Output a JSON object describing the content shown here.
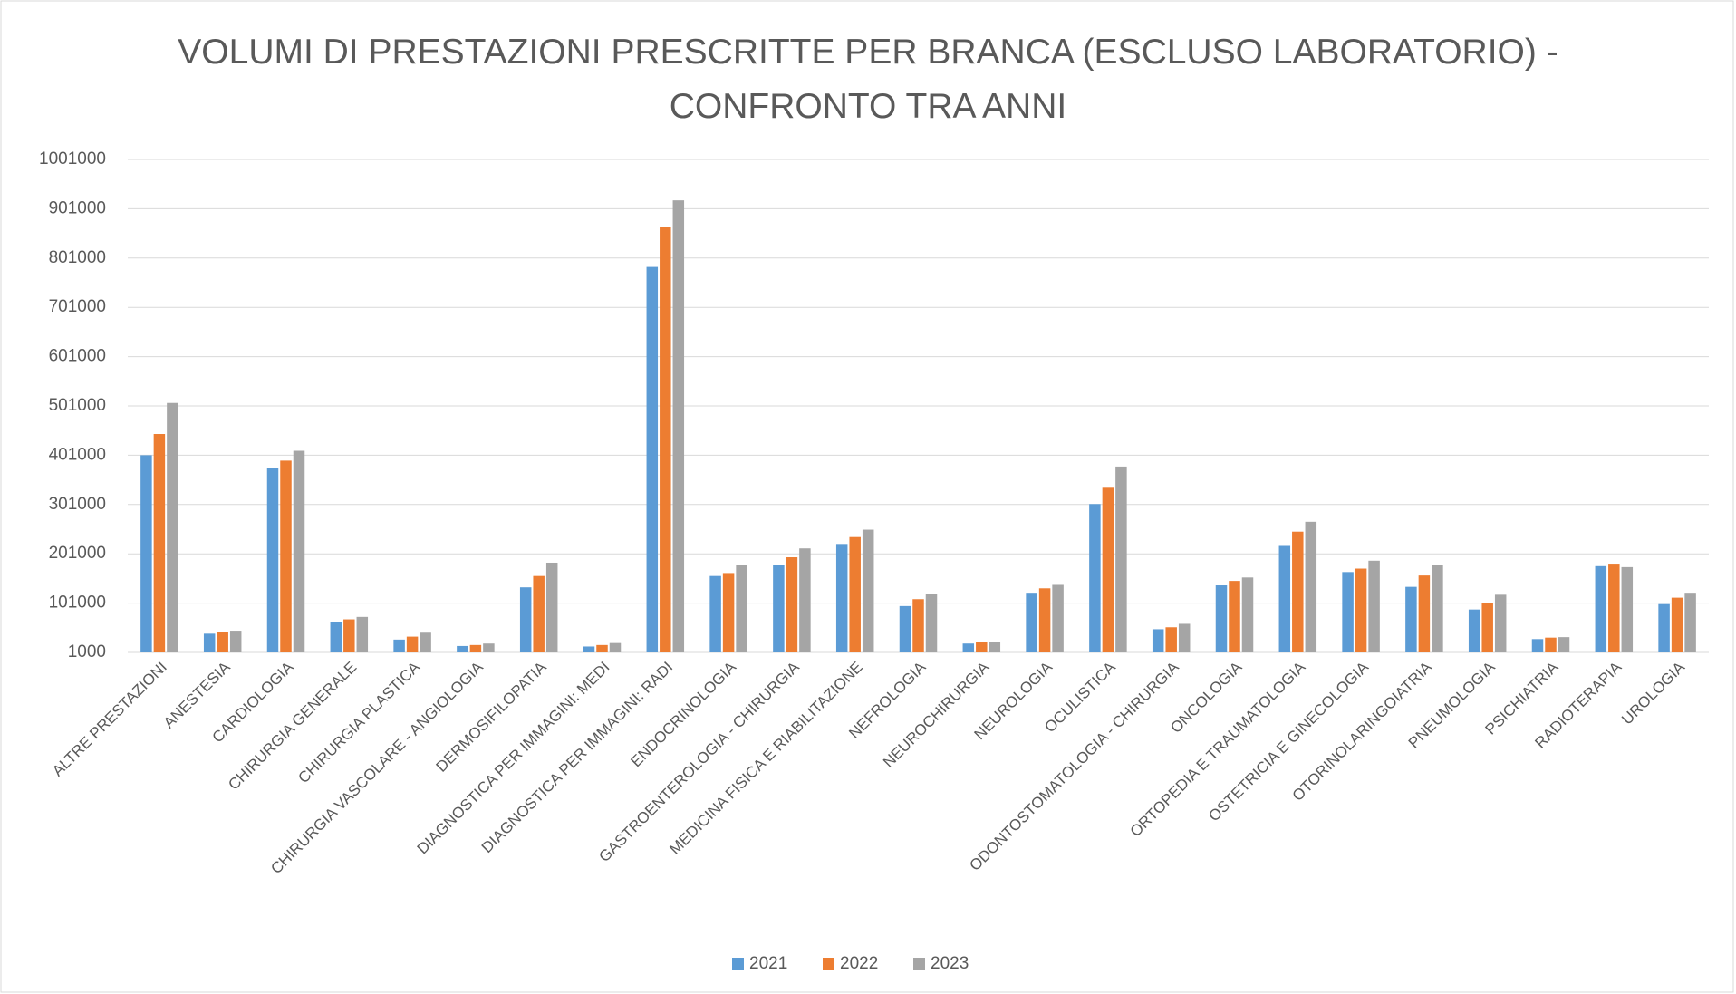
{
  "chart_data": {
    "type": "bar",
    "title": "VOLUMI DI PRESTAZIONI PRESCRITTE PER BRANCA (ESCLUSO LABORATORIO) - CONFRONTO TRA ANNI",
    "categories": [
      "ALTRE PRESTAZIONI",
      "ANESTESIA",
      "CARDIOLOGIA",
      "CHIRURGIA GENERALE",
      "CHIRURGIA PLASTICA",
      "CHIRURGIA VASCOLARE - ANGIOLOGIA",
      "DERMOSIFILOPATIA",
      "DIAGNOSTICA PER IMMAGINI: MEDI",
      "DIAGNOSTICA PER IMMAGINI: RADI",
      "ENDOCRINOLOGIA",
      "GASTROENTEROLOGIA - CHIRURGIA",
      "MEDICINA FISICA E RIABILITAZIONE",
      "NEFROLOGIA",
      "NEUROCHIRURGIA",
      "NEUROLOGIA",
      "OCULISTICA",
      "ODONTOSTOMATOLOGIA - CHIRURGIA",
      "ONCOLOGIA",
      "ORTOPEDIA E TRAUMATOLOGIA",
      "OSTETRICIA E GINECOLOGIA",
      "OTORINOLARINGOIATRIA",
      "PNEUMOLOGIA",
      "PSICHIATRIA",
      "RADIOTERAPIA",
      "UROLOGIA"
    ],
    "series": [
      {
        "name": "2021",
        "color": "#5b9bd5",
        "values": [
          401000,
          39000,
          376000,
          63000,
          27000,
          14000,
          133000,
          13000,
          783000,
          156000,
          178000,
          221000,
          95000,
          19000,
          122000,
          302000,
          48000,
          137000,
          217000,
          164000,
          134000,
          88000,
          28000,
          176000,
          99000
        ]
      },
      {
        "name": "2022",
        "color": "#ed7d31",
        "values": [
          444000,
          43000,
          390000,
          68000,
          33000,
          16000,
          156000,
          16000,
          864000,
          162000,
          194000,
          235000,
          109000,
          23000,
          131000,
          335000,
          52000,
          146000,
          246000,
          171000,
          157000,
          102000,
          31000,
          181000,
          112000
        ]
      },
      {
        "name": "2023",
        "color": "#a5a5a5",
        "values": [
          507000,
          45000,
          410000,
          73000,
          41000,
          19000,
          183000,
          20000,
          918000,
          179000,
          212000,
          250000,
          120000,
          22000,
          138000,
          378000,
          59000,
          153000,
          266000,
          187000,
          178000,
          118000,
          32000,
          174000,
          122000
        ]
      }
    ],
    "ylim": [
      1000,
      1001000
    ],
    "yticks": [
      1000,
      101000,
      201000,
      301000,
      401000,
      501000,
      601000,
      701000,
      801000,
      901000,
      1001000
    ],
    "grid": true,
    "legend": "bottom"
  }
}
